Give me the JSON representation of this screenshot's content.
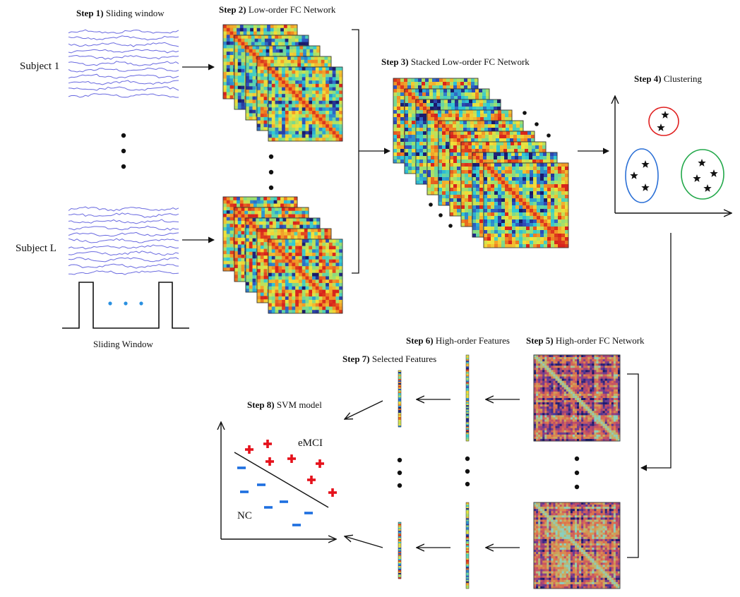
{
  "steps": {
    "s1": {
      "num": "Step 1)",
      "text": "Sliding window"
    },
    "s2": {
      "num": "Step 2)",
      "text": "Low-order FC Network"
    },
    "s3": {
      "num": "Step 3)",
      "text": "Stacked Low-order FC Network"
    },
    "s4": {
      "num": "Step 4)",
      "text": "Clustering"
    },
    "s5": {
      "num": "Step 5)",
      "text": "High-order FC Network"
    },
    "s6": {
      "num": "Step 6)",
      "text": "High-order Features"
    },
    "s7": {
      "num": "Step 7)",
      "text": "Selected Features"
    },
    "s8": {
      "num": "Step 8)",
      "text": "SVM model"
    }
  },
  "subjects": {
    "first": "Subject  1",
    "last": "Subject  L"
  },
  "sliding_window_caption": "Sliding Window",
  "svm": {
    "class_pos": "eMCI",
    "class_neg": "NC"
  },
  "colors": {
    "signal": "#6a6ae0",
    "cluster_red": "#e02020",
    "cluster_blue": "#2a6fd6",
    "cluster_green": "#22a84a",
    "plus": "#e5121b",
    "minus": "#1e6fe0",
    "dots_blue": "#2a90e0",
    "heat_dark": "#1a1a6a",
    "heat_cyan": "#2ec9d8",
    "heat_yellow": "#f2e23a",
    "heat_red": "#d8231c"
  }
}
